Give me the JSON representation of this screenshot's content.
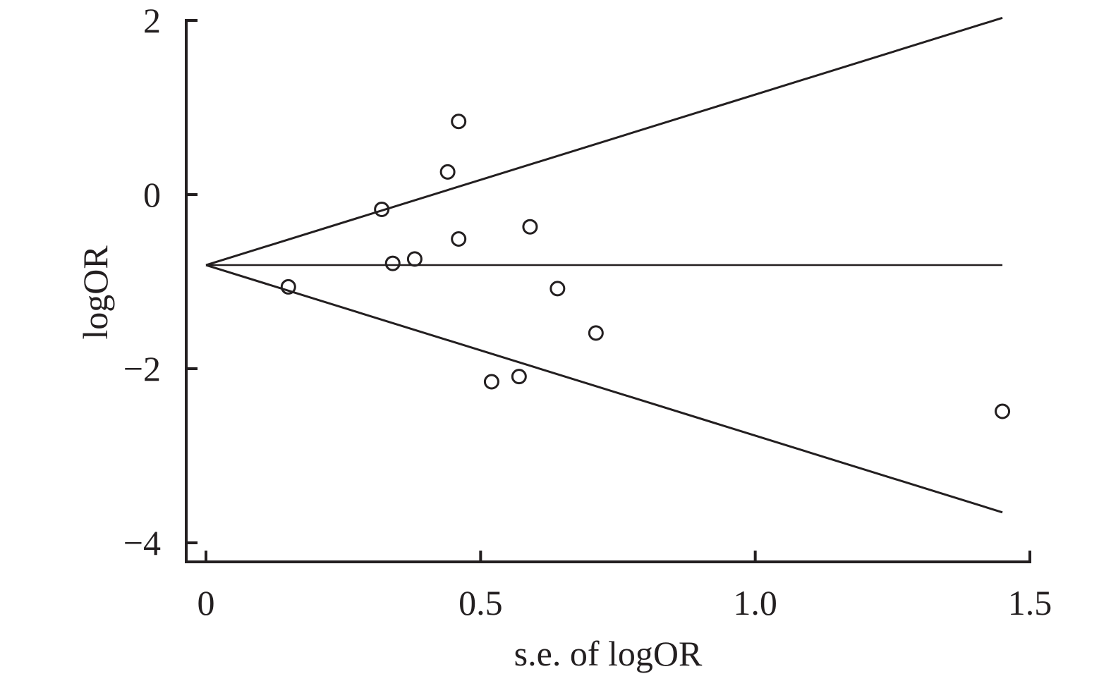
{
  "chart_data": {
    "type": "scatter",
    "xlabel": "s.e. of logOR",
    "ylabel": "logOR",
    "xlim": [
      0,
      1.5
    ],
    "ylim": [
      -4,
      2
    ],
    "x_ticks": [
      0,
      0.5,
      1.0,
      1.5
    ],
    "x_tick_labels": [
      "0",
      "0.5",
      "1.0",
      "1.5"
    ],
    "y_ticks": [
      2,
      0,
      -2,
      -4
    ],
    "y_tick_labels": [
      "2",
      "0",
      "−2",
      "−4"
    ],
    "grid": false,
    "legend": "none",
    "points": [
      {
        "x": 0.15,
        "y": -1.06
      },
      {
        "x": 0.32,
        "y": -0.17
      },
      {
        "x": 0.34,
        "y": -0.79
      },
      {
        "x": 0.38,
        "y": -0.74
      },
      {
        "x": 0.44,
        "y": 0.26
      },
      {
        "x": 0.46,
        "y": 0.84
      },
      {
        "x": 0.46,
        "y": -0.51
      },
      {
        "x": 0.52,
        "y": -2.15
      },
      {
        "x": 0.57,
        "y": -2.09
      },
      {
        "x": 0.59,
        "y": -0.37
      },
      {
        "x": 0.64,
        "y": -1.08
      },
      {
        "x": 0.71,
        "y": -1.59
      },
      {
        "x": 1.45,
        "y": -2.49
      }
    ],
    "pooled_logOR": -0.81,
    "funnel_limits": {
      "x": [
        0,
        1.45
      ],
      "upper": [
        -0.81,
        2.03
      ],
      "lower": [
        -0.81,
        -3.65
      ]
    },
    "colors": {
      "ink": "#231f20"
    }
  }
}
